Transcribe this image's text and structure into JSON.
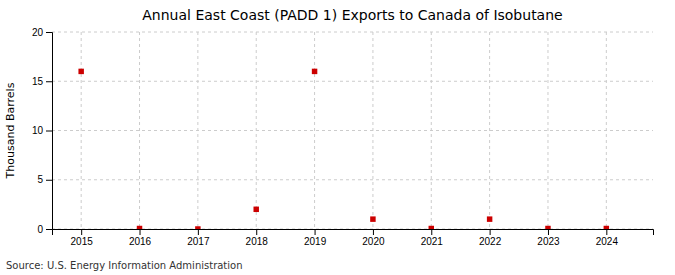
{
  "chart_data": {
    "type": "scatter",
    "title": "Annual East Coast (PADD 1) Exports to Canada of Isobutane",
    "ylabel": "Thousand Barrels",
    "annotations": [
      "Source: U.S. Energy Information Administration"
    ],
    "x": [
      2015,
      2016,
      2017,
      2018,
      2019,
      2020,
      2021,
      2022,
      2023,
      2024
    ],
    "values": [
      16,
      0.05,
      0,
      2,
      16,
      1,
      0.05,
      1,
      0.05,
      0.05
    ],
    "color": "#cc0000",
    "marker": "square",
    "xlim": [
      2014.5,
      2024.8
    ],
    "xticks": [
      2015,
      2016,
      2017,
      2018,
      2019,
      2020,
      2021,
      2022,
      2023,
      2024
    ],
    "ylim": [
      0,
      20
    ],
    "yticks": [
      0,
      5,
      10,
      15,
      20
    ],
    "grid": true
  }
}
